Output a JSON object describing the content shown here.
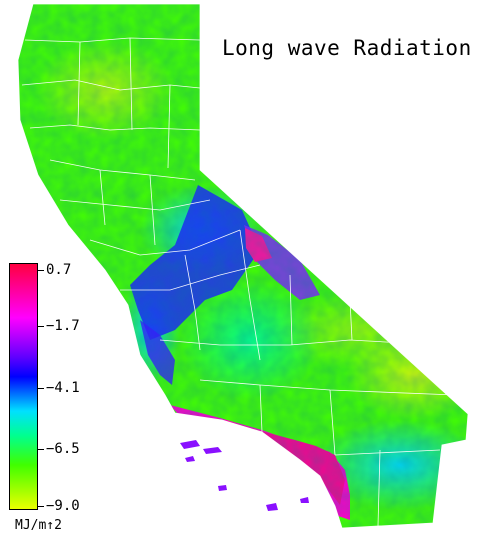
{
  "title": "Long wave Radiation",
  "legend": {
    "ticks": [
      "0.7",
      "−1.7",
      "−4.1",
      "−6.5",
      "−9.0"
    ],
    "units": "MJ/m↑2",
    "colors": [
      "#ff0040",
      "#ff00ff",
      "#6000ff",
      "#0000ff",
      "#00e0ff",
      "#00ff90",
      "#40ff00",
      "#eaff00"
    ]
  }
}
